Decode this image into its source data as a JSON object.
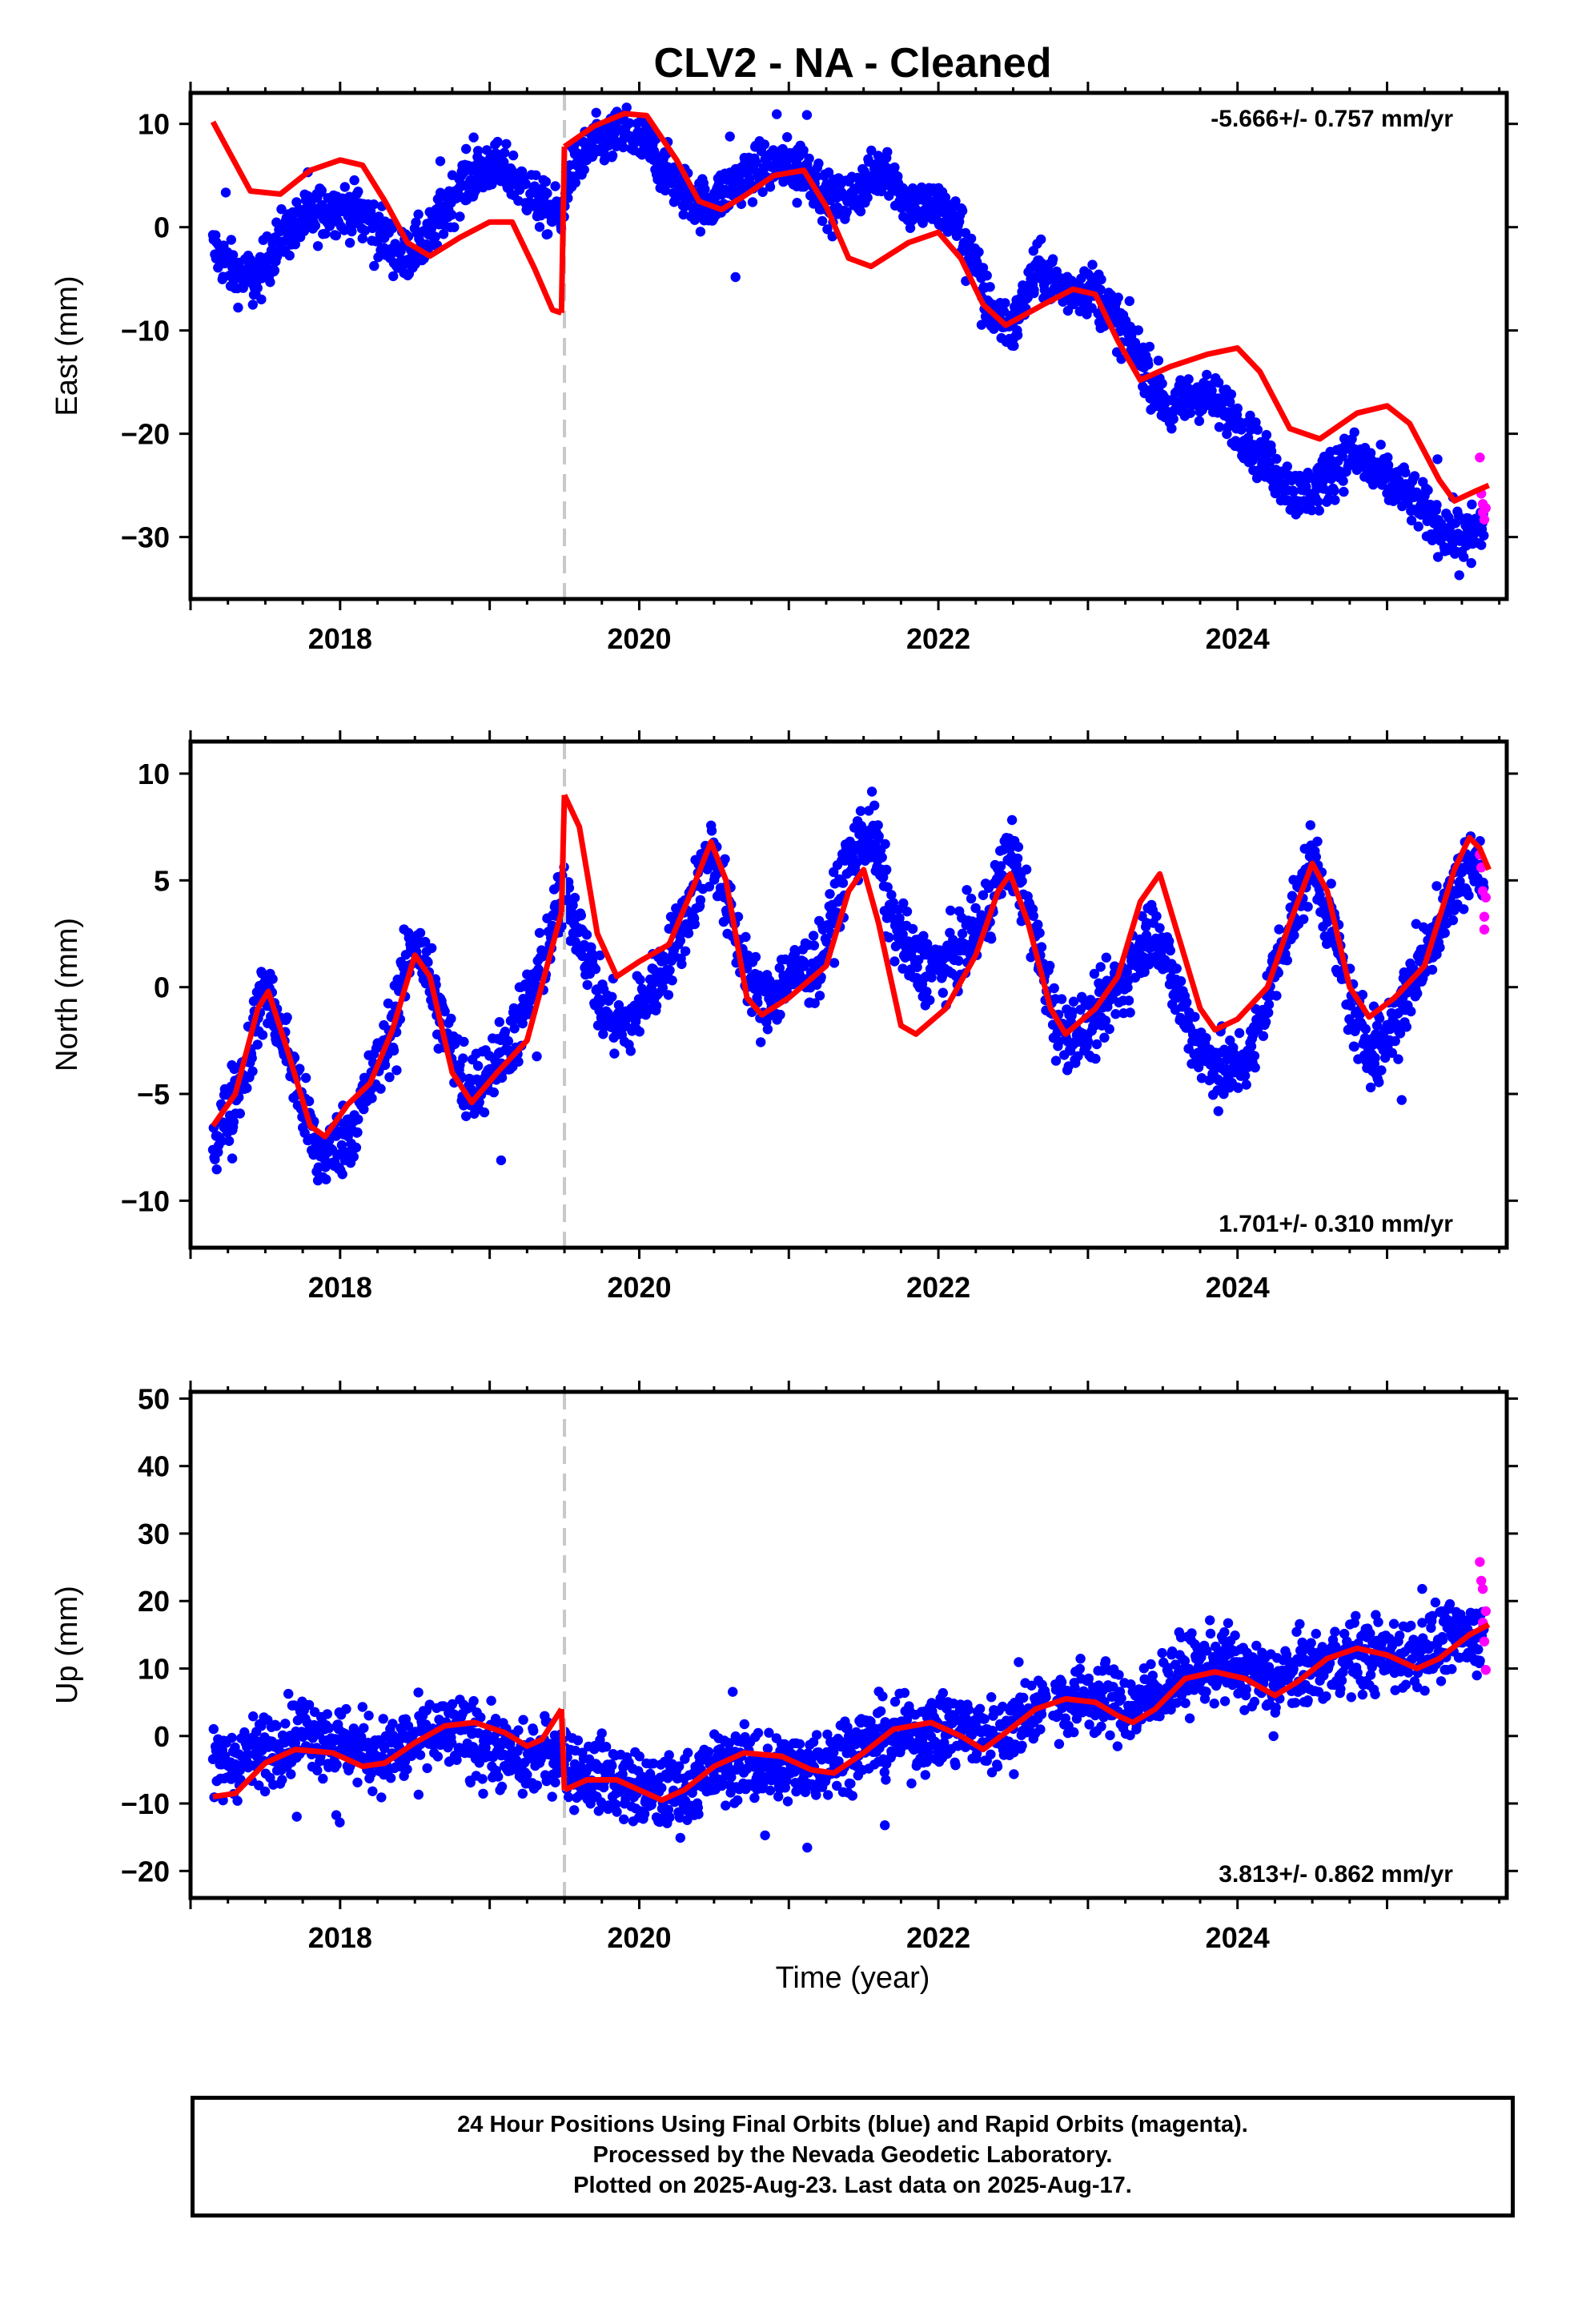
{
  "title": "CLV2  - NA - Cleaned",
  "x_axis_label": "Time (year)",
  "footer": {
    "line1": "24 Hour Positions Using Final Orbits (blue) and Rapid Orbits (magenta).",
    "line2": "Processed by the Nevada Geodetic Laboratory.",
    "line3": "Plotted on 2025-Aug-23. Last data on 2025-Aug-17."
  },
  "colors": {
    "final_orbits": "#0000ff",
    "rapid_orbits": "#ff00ff",
    "model": "#ff0000",
    "offset_line": "#c8c8c8"
  },
  "chart_data": [
    {
      "type": "scatter",
      "component": "east",
      "ylabel": "East (mm)",
      "rate_text": "-5.666+/- 0.757 mm/yr",
      "xlim": [
        2017.0,
        2025.8
      ],
      "ylim": [
        -36,
        13
      ],
      "xticks": [
        2018,
        2020,
        2022,
        2024
      ],
      "yticks": [
        10,
        0,
        -10,
        -20,
        -30
      ],
      "ytick_labels": [
        "10",
        "0",
        "−10",
        "−20",
        "−30"
      ],
      "offset_epoch": 2019.5,
      "model": [
        [
          2017.15,
          10.2
        ],
        [
          2017.25,
          7.5
        ],
        [
          2017.4,
          3.5
        ],
        [
          2017.6,
          3.2
        ],
        [
          2017.8,
          5.5
        ],
        [
          2018.0,
          6.5
        ],
        [
          2018.15,
          6.0
        ],
        [
          2018.3,
          2.5
        ],
        [
          2018.45,
          -1.5
        ],
        [
          2018.6,
          -2.8
        ],
        [
          2018.8,
          -1.0
        ],
        [
          2019.0,
          0.5
        ],
        [
          2019.15,
          0.5
        ],
        [
          2019.3,
          -4.0
        ],
        [
          2019.42,
          -8.0
        ],
        [
          2019.48,
          -8.3
        ],
        [
          2019.5,
          7.8
        ],
        [
          2019.7,
          9.8
        ],
        [
          2019.9,
          11.0
        ],
        [
          2020.05,
          10.8
        ],
        [
          2020.25,
          6.5
        ],
        [
          2020.4,
          2.5
        ],
        [
          2020.55,
          1.7
        ],
        [
          2020.7,
          3.0
        ],
        [
          2020.9,
          5.0
        ],
        [
          2021.1,
          5.5
        ],
        [
          2021.25,
          2.0
        ],
        [
          2021.4,
          -3.0
        ],
        [
          2021.55,
          -3.8
        ],
        [
          2021.8,
          -1.5
        ],
        [
          2022.0,
          -0.5
        ],
        [
          2022.15,
          -3.0
        ],
        [
          2022.3,
          -7.5
        ],
        [
          2022.45,
          -9.5
        ],
        [
          2022.7,
          -7.5
        ],
        [
          2022.9,
          -6.0
        ],
        [
          2023.05,
          -6.5
        ],
        [
          2023.2,
          -11.0
        ],
        [
          2023.35,
          -14.8
        ],
        [
          2023.55,
          -13.5
        ],
        [
          2023.8,
          -12.3
        ],
        [
          2024.0,
          -11.7
        ],
        [
          2024.15,
          -14.0
        ],
        [
          2024.35,
          -19.5
        ],
        [
          2024.55,
          -20.5
        ],
        [
          2024.8,
          -18.0
        ],
        [
          2025.0,
          -17.3
        ],
        [
          2025.15,
          -19.0
        ],
        [
          2025.35,
          -24.5
        ],
        [
          2025.45,
          -26.5
        ],
        [
          2025.6,
          -25.5
        ],
        [
          2025.68,
          -25.0
        ]
      ],
      "blue_trend": [
        [
          2017.15,
          -2
        ],
        [
          2017.3,
          -4.5
        ],
        [
          2017.45,
          -5
        ],
        [
          2017.6,
          -1
        ],
        [
          2017.8,
          1
        ],
        [
          2018.0,
          2
        ],
        [
          2018.2,
          1
        ],
        [
          2018.4,
          -3
        ],
        [
          2018.6,
          -1
        ],
        [
          2018.8,
          4
        ],
        [
          2019.0,
          6
        ],
        [
          2019.15,
          5
        ],
        [
          2019.35,
          2
        ],
        [
          2019.48,
          1
        ],
        [
          2019.52,
          5
        ],
        [
          2019.7,
          8
        ],
        [
          2019.9,
          9
        ],
        [
          2020.05,
          8
        ],
        [
          2020.25,
          4
        ],
        [
          2020.45,
          2
        ],
        [
          2020.7,
          5
        ],
        [
          2020.9,
          6
        ],
        [
          2021.1,
          6
        ],
        [
          2021.3,
          2
        ],
        [
          2021.5,
          4
        ],
        [
          2021.65,
          6
        ],
        [
          2021.8,
          2
        ],
        [
          2022.0,
          2
        ],
        [
          2022.15,
          0
        ],
        [
          2022.35,
          -8
        ],
        [
          2022.5,
          -10
        ],
        [
          2022.65,
          -4
        ],
        [
          2022.85,
          -6
        ],
        [
          2023.05,
          -6
        ],
        [
          2023.25,
          -10
        ],
        [
          2023.55,
          -18
        ],
        [
          2023.75,
          -16
        ],
        [
          2023.95,
          -18
        ],
        [
          2024.15,
          -22
        ],
        [
          2024.4,
          -26
        ],
        [
          2024.55,
          -25
        ],
        [
          2024.75,
          -22
        ],
        [
          2024.95,
          -24
        ],
        [
          2025.15,
          -26
        ],
        [
          2025.35,
          -29
        ],
        [
          2025.5,
          -30
        ],
        [
          2025.65,
          -29
        ]
      ],
      "blue_spread": 2.4,
      "rapid_points": [
        [
          2025.62,
          -22.3
        ],
        [
          2025.63,
          -25.8
        ],
        [
          2025.64,
          -26.8
        ],
        [
          2025.64,
          -27.6
        ],
        [
          2025.65,
          -28.3
        ],
        [
          2025.66,
          -27.2
        ]
      ]
    },
    {
      "type": "scatter",
      "component": "north",
      "ylabel": "North (mm)",
      "rate_text": "1.701+/- 0.310 mm/yr",
      "xlim": [
        2017.0,
        2025.8
      ],
      "ylim": [
        -12.2,
        11.5
      ],
      "xticks": [
        2018,
        2020,
        2022,
        2024
      ],
      "yticks": [
        10,
        5,
        0,
        -5,
        -10
      ],
      "ytick_labels": [
        "10",
        "5",
        "0",
        "−5",
        "−10"
      ],
      "offset_epoch": 2019.5,
      "model": [
        [
          2017.15,
          -6.5
        ],
        [
          2017.3,
          -5.0
        ],
        [
          2017.45,
          -1.0
        ],
        [
          2017.52,
          -0.2
        ],
        [
          2017.65,
          -3.0
        ],
        [
          2017.8,
          -6.5
        ],
        [
          2017.9,
          -7.0
        ],
        [
          2018.05,
          -5.5
        ],
        [
          2018.2,
          -4.5
        ],
        [
          2018.35,
          -2.0
        ],
        [
          2018.5,
          1.5
        ],
        [
          2018.6,
          0.5
        ],
        [
          2018.75,
          -4.0
        ],
        [
          2018.88,
          -5.4
        ],
        [
          2019.05,
          -4.0
        ],
        [
          2019.25,
          -2.5
        ],
        [
          2019.48,
          3.5
        ],
        [
          2019.5,
          9.0
        ],
        [
          2019.6,
          7.5
        ],
        [
          2019.72,
          2.5
        ],
        [
          2019.85,
          0.5
        ],
        [
          2020.0,
          1.2
        ],
        [
          2020.2,
          2.0
        ],
        [
          2020.35,
          4.5
        ],
        [
          2020.48,
          6.8
        ],
        [
          2020.58,
          5.0
        ],
        [
          2020.72,
          -0.5
        ],
        [
          2020.82,
          -1.3
        ],
        [
          2021.0,
          -0.5
        ],
        [
          2021.25,
          1.0
        ],
        [
          2021.4,
          4.5
        ],
        [
          2021.5,
          5.5
        ],
        [
          2021.6,
          3.0
        ],
        [
          2021.75,
          -1.8
        ],
        [
          2021.85,
          -2.2
        ],
        [
          2022.05,
          -1.0
        ],
        [
          2022.25,
          1.5
        ],
        [
          2022.4,
          4.5
        ],
        [
          2022.48,
          5.3
        ],
        [
          2022.6,
          3.0
        ],
        [
          2022.75,
          -1.0
        ],
        [
          2022.85,
          -2.2
        ],
        [
          2023.05,
          -1.0
        ],
        [
          2023.2,
          0.5
        ],
        [
          2023.35,
          4.0
        ],
        [
          2023.48,
          5.3
        ],
        [
          2023.6,
          2.5
        ],
        [
          2023.75,
          -1.0
        ],
        [
          2023.85,
          -2.0
        ],
        [
          2024.0,
          -1.5
        ],
        [
          2024.2,
          0.0
        ],
        [
          2024.35,
          3.0
        ],
        [
          2024.5,
          5.8
        ],
        [
          2024.6,
          4.5
        ],
        [
          2024.75,
          0.0
        ],
        [
          2024.88,
          -1.4
        ],
        [
          2025.05,
          -0.5
        ],
        [
          2025.25,
          1.0
        ],
        [
          2025.45,
          5.5
        ],
        [
          2025.55,
          7.0
        ],
        [
          2025.62,
          6.5
        ],
        [
          2025.68,
          5.5
        ]
      ],
      "blue_trend": [
        [
          2017.15,
          -7.5
        ],
        [
          2017.35,
          -4
        ],
        [
          2017.5,
          0
        ],
        [
          2017.65,
          -3
        ],
        [
          2017.85,
          -8
        ],
        [
          2018.05,
          -7
        ],
        [
          2018.3,
          -3
        ],
        [
          2018.5,
          2.5
        ],
        [
          2018.65,
          -1
        ],
        [
          2018.85,
          -5
        ],
        [
          2019.1,
          -3
        ],
        [
          2019.3,
          0
        ],
        [
          2019.48,
          4
        ],
        [
          2019.6,
          3
        ],
        [
          2019.75,
          -1
        ],
        [
          2019.9,
          -2
        ],
        [
          2020.1,
          0
        ],
        [
          2020.3,
          3
        ],
        [
          2020.48,
          6.5
        ],
        [
          2020.62,
          3
        ],
        [
          2020.82,
          -1
        ],
        [
          2021.0,
          0.5
        ],
        [
          2021.2,
          1
        ],
        [
          2021.4,
          6
        ],
        [
          2021.55,
          7.5
        ],
        [
          2021.7,
          3
        ],
        [
          2021.85,
          1
        ],
        [
          2022.05,
          1
        ],
        [
          2022.3,
          3
        ],
        [
          2022.48,
          6.5
        ],
        [
          2022.62,
          3
        ],
        [
          2022.8,
          -2
        ],
        [
          2023.0,
          -2
        ],
        [
          2023.2,
          0
        ],
        [
          2023.45,
          3
        ],
        [
          2023.58,
          0
        ],
        [
          2023.75,
          -3
        ],
        [
          2023.95,
          -4
        ],
        [
          2024.1,
          -3
        ],
        [
          2024.3,
          2
        ],
        [
          2024.5,
          6
        ],
        [
          2024.62,
          3
        ],
        [
          2024.8,
          -2
        ],
        [
          2024.95,
          -3
        ],
        [
          2025.15,
          0
        ],
        [
          2025.35,
          3
        ],
        [
          2025.55,
          6
        ],
        [
          2025.65,
          5
        ]
      ],
      "blue_spread": 1.6,
      "rapid_points": [
        [
          2025.62,
          6.2
        ],
        [
          2025.63,
          5.6
        ],
        [
          2025.64,
          4.5
        ],
        [
          2025.65,
          3.3
        ],
        [
          2025.65,
          2.7
        ],
        [
          2025.66,
          4.2
        ]
      ]
    },
    {
      "type": "scatter",
      "component": "up",
      "ylabel": "Up (mm)",
      "rate_text": "3.813+/- 0.862 mm/yr",
      "xlim": [
        2017.0,
        2025.8
      ],
      "ylim": [
        -24,
        51
      ],
      "xticks": [
        2018,
        2020,
        2022,
        2024
      ],
      "yticks": [
        50,
        40,
        30,
        20,
        10,
        0,
        -10,
        -20
      ],
      "ytick_labels": [
        "50",
        "40",
        "30",
        "20",
        "10",
        "0",
        "−10",
        "−20"
      ],
      "offset_epoch": 2019.5,
      "model": [
        [
          2017.15,
          -9.0
        ],
        [
          2017.3,
          -8.5
        ],
        [
          2017.5,
          -4.0
        ],
        [
          2017.7,
          -2.0
        ],
        [
          2017.95,
          -2.5
        ],
        [
          2018.15,
          -4.5
        ],
        [
          2018.3,
          -4.0
        ],
        [
          2018.5,
          -1.0
        ],
        [
          2018.7,
          1.5
        ],
        [
          2018.9,
          2.0
        ],
        [
          2019.1,
          0.5
        ],
        [
          2019.25,
          -1.5
        ],
        [
          2019.35,
          -0.5
        ],
        [
          2019.48,
          4.0
        ],
        [
          2019.5,
          -8.0
        ],
        [
          2019.65,
          -6.5
        ],
        [
          2019.85,
          -6.5
        ],
        [
          2020.0,
          -8.0
        ],
        [
          2020.15,
          -9.5
        ],
        [
          2020.3,
          -8.0
        ],
        [
          2020.5,
          -4.5
        ],
        [
          2020.7,
          -2.5
        ],
        [
          2020.95,
          -3.0
        ],
        [
          2021.15,
          -5.0
        ],
        [
          2021.3,
          -5.5
        ],
        [
          2021.5,
          -2.5
        ],
        [
          2021.7,
          1.0
        ],
        [
          2021.95,
          2.0
        ],
        [
          2022.15,
          0.0
        ],
        [
          2022.3,
          -2.0
        ],
        [
          2022.45,
          0.5
        ],
        [
          2022.65,
          4.0
        ],
        [
          2022.85,
          5.5
        ],
        [
          2023.05,
          5.0
        ],
        [
          2023.2,
          3.0
        ],
        [
          2023.3,
          2.0
        ],
        [
          2023.45,
          4.0
        ],
        [
          2023.65,
          8.5
        ],
        [
          2023.85,
          9.5
        ],
        [
          2024.05,
          8.5
        ],
        [
          2024.25,
          6.0
        ],
        [
          2024.4,
          8.0
        ],
        [
          2024.6,
          11.5
        ],
        [
          2024.8,
          13.0
        ],
        [
          2025.0,
          12.0
        ],
        [
          2025.2,
          10.0
        ],
        [
          2025.35,
          11.5
        ],
        [
          2025.55,
          15.0
        ],
        [
          2025.68,
          16.5
        ]
      ],
      "blue_trend": [
        [
          2017.15,
          -5
        ],
        [
          2017.5,
          -2
        ],
        [
          2017.75,
          1
        ],
        [
          2018.0,
          -1
        ],
        [
          2018.3,
          -3
        ],
        [
          2018.6,
          0
        ],
        [
          2018.9,
          0
        ],
        [
          2019.2,
          -4
        ],
        [
          2019.48,
          -2
        ],
        [
          2019.55,
          -5
        ],
        [
          2019.8,
          -6
        ],
        [
          2020.1,
          -9
        ],
        [
          2020.3,
          -8
        ],
        [
          2020.6,
          -4
        ],
        [
          2020.9,
          -5
        ],
        [
          2021.2,
          -4
        ],
        [
          2021.5,
          -1
        ],
        [
          2021.8,
          0
        ],
        [
          2022.1,
          1
        ],
        [
          2022.4,
          0
        ],
        [
          2022.7,
          5
        ],
        [
          2023.0,
          6
        ],
        [
          2023.3,
          4
        ],
        [
          2023.6,
          9
        ],
        [
          2023.9,
          11
        ],
        [
          2024.2,
          8
        ],
        [
          2024.5,
          10
        ],
        [
          2024.8,
          12
        ],
        [
          2025.1,
          12
        ],
        [
          2025.4,
          14
        ],
        [
          2025.65,
          15
        ]
      ],
      "blue_spread": 5.2,
      "rapid_points": [
        [
          2025.62,
          25.8
        ],
        [
          2025.63,
          23.0
        ],
        [
          2025.64,
          21.8
        ],
        [
          2025.64,
          16.8
        ],
        [
          2025.65,
          14.0
        ],
        [
          2025.66,
          9.8
        ],
        [
          2025.66,
          18.5
        ]
      ]
    }
  ]
}
